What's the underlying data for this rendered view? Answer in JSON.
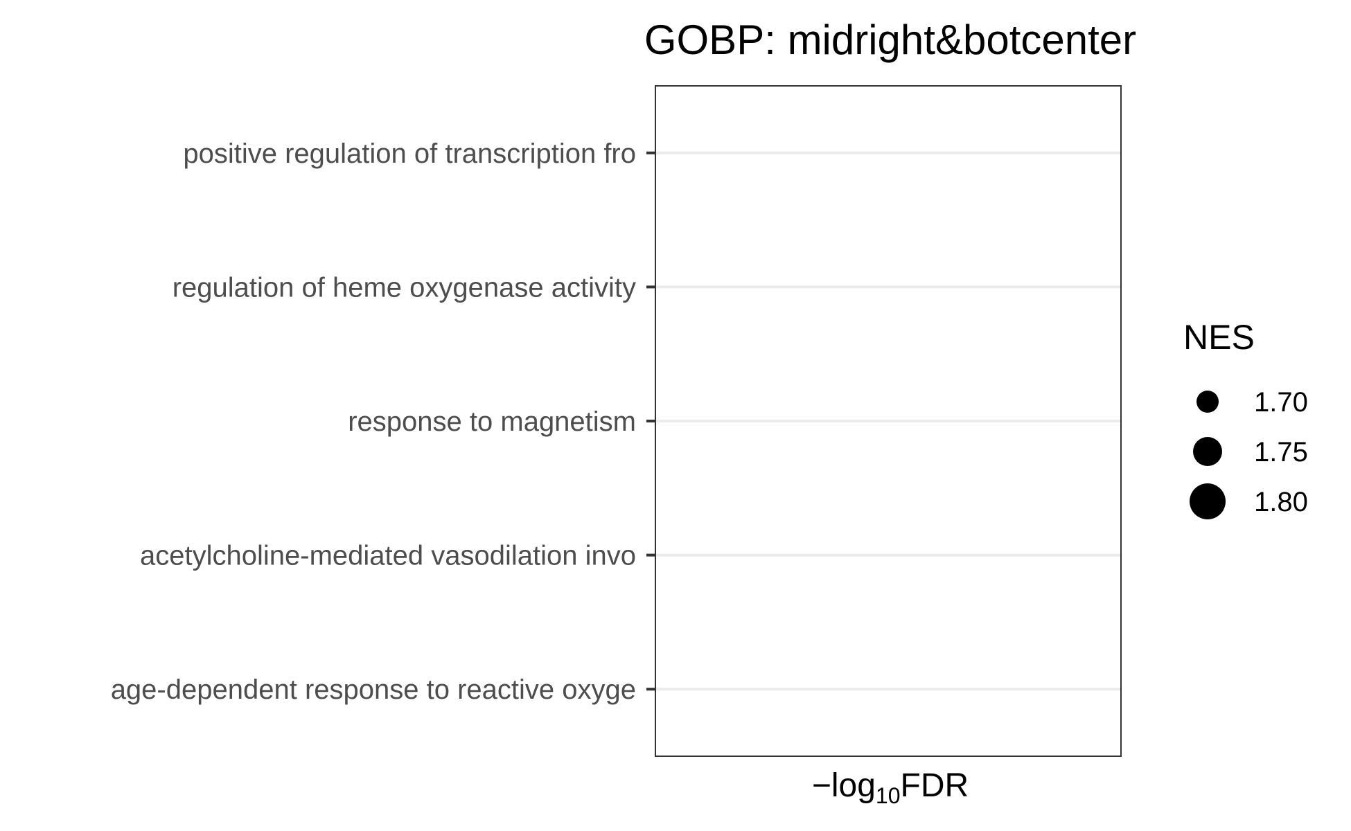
{
  "chart_data": {
    "type": "scatter",
    "title": "GOBP: midright&botcenter",
    "xlabel": {
      "minus": "−",
      "log": "log",
      "subscript": "10",
      "quantity": "FDR"
    },
    "ylabel": "",
    "categories": [
      "positive regulation of transcription fro",
      "regulation of heme oxygenase activity",
      "response to magnetism",
      "acetylcholine-mediated vasodilation invo",
      "age-dependent response to reactive oxyge"
    ],
    "points": [],
    "grid": true,
    "legend": {
      "title": "NES",
      "position": "right",
      "entries": [
        {
          "label": "1.70",
          "value": 1.7
        },
        {
          "label": "1.75",
          "value": 1.75
        },
        {
          "label": "1.80",
          "value": 1.8
        }
      ]
    },
    "colors": {
      "panel_border": "#333333",
      "gridline": "#ebebeb",
      "tick": "#333333",
      "point": "#000000"
    }
  }
}
